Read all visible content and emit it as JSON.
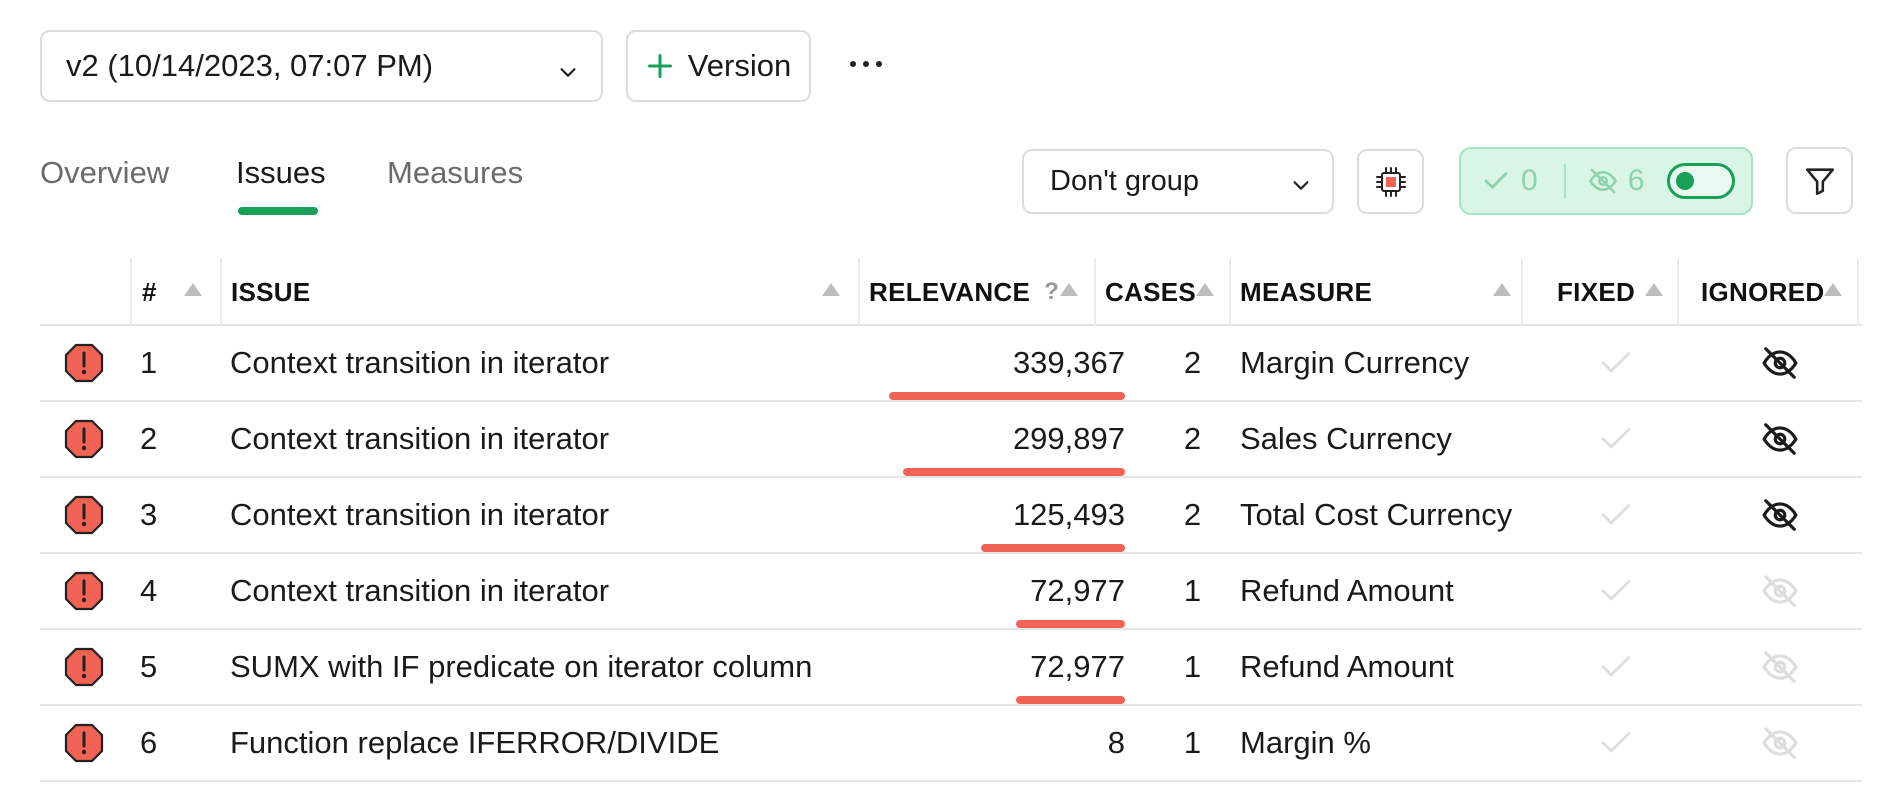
{
  "header": {
    "version_select": "v2 (10/14/2023, 07:07 PM)",
    "add_version_label": "Version"
  },
  "tabs": [
    {
      "label": "Overview",
      "active": false
    },
    {
      "label": "Issues",
      "active": true
    },
    {
      "label": "Measures",
      "active": false
    }
  ],
  "controls": {
    "group_select": "Don't group",
    "fixed_count": "0",
    "ignored_count": "6",
    "show_ignored_toggle": true
  },
  "table": {
    "columns": {
      "num": "#",
      "issue": "ISSUE",
      "relevance": "RELEVANCE",
      "relevance_help": "?",
      "cases": "CASES",
      "measure": "MEASURE",
      "fixed": "FIXED",
      "ignored": "IGNORED"
    },
    "rows": [
      {
        "num": "1",
        "issue": "Context transition in iterator",
        "relevance": "339,367",
        "relevance_value": 339367,
        "cases": "2",
        "measure": "Margin Currency",
        "ignored": true
      },
      {
        "num": "2",
        "issue": "Context transition in iterator",
        "relevance": "299,897",
        "relevance_value": 299897,
        "cases": "2",
        "measure": "Sales Currency",
        "ignored": true
      },
      {
        "num": "3",
        "issue": "Context transition in iterator",
        "relevance": "125,493",
        "relevance_value": 125493,
        "cases": "2",
        "measure": "Total Cost Currency",
        "ignored": true
      },
      {
        "num": "4",
        "issue": "Context transition in iterator",
        "relevance": "72,977",
        "relevance_value": 72977,
        "cases": "1",
        "measure": "Refund Amount",
        "ignored": false
      },
      {
        "num": "5",
        "issue": "SUMX with IF predicate on iterator column",
        "relevance": "72,977",
        "relevance_value": 72977,
        "cases": "1",
        "measure": "Refund Amount",
        "ignored": false
      },
      {
        "num": "6",
        "issue": "Function replace IFERROR/DIVIDE",
        "relevance": "8",
        "relevance_value": 8,
        "cases": "1",
        "measure": "Margin %",
        "ignored": false
      }
    ]
  },
  "colors": {
    "accent": "#18a058",
    "relevance_bar": "#f06355",
    "error_icon": "#f06355",
    "toggle_bg": "#d9f5e5"
  },
  "icons": {
    "error": "octagon-alert-icon",
    "fixed": "check-icon",
    "ignored": "eye-off-icon"
  }
}
